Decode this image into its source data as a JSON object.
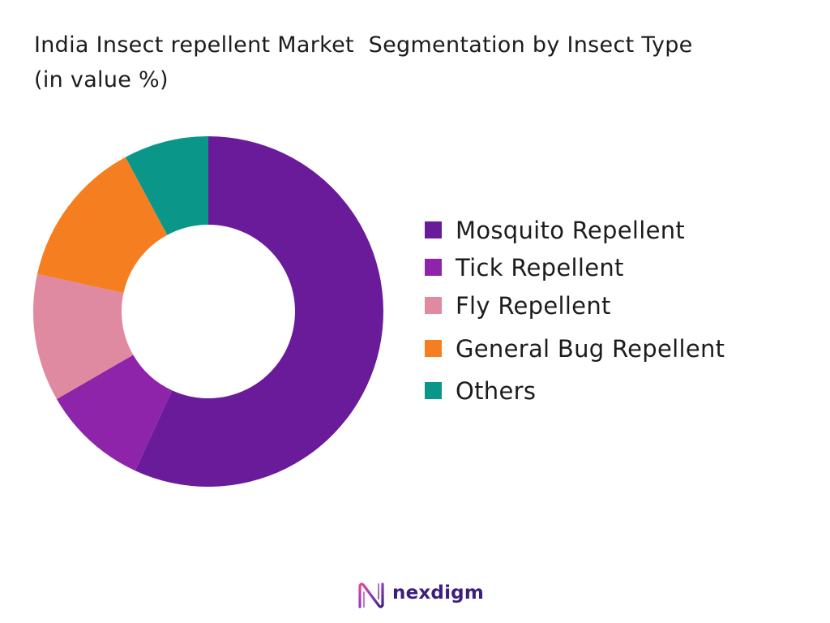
{
  "title": {
    "line1": "India Insect repellent Market  Segmentation by Insect Type",
    "line2": "(in value %)"
  },
  "chart_data": {
    "type": "pie",
    "donut": true,
    "title": "India Insect repellent Market  Segmentation by Insect Type (in value %)",
    "unit": "%",
    "categories": [
      "Mosquito Repellent",
      "Tick Repellent",
      "Fly Repellent",
      "General Bug Repellent",
      "Others"
    ],
    "values": [
      58,
      10,
      12,
      14,
      8
    ],
    "colors": [
      "#6a1b9a",
      "#8e24aa",
      "#df8aa0",
      "#f57f20",
      "#0b968a"
    ],
    "start_angle_deg": 0,
    "direction": "clockwise",
    "legend_position": "right"
  },
  "legend": {
    "items": [
      {
        "label": "Mosquito Repellent",
        "color": "#6a1b9a"
      },
      {
        "label": "Tick Repellent",
        "color": "#8e24aa"
      },
      {
        "label": "Fly Repellent",
        "color": "#df8aa0"
      },
      {
        "label": "General Bug Repellent",
        "color": "#f57f20"
      },
      {
        "label": "Others",
        "color": "#0b968a"
      }
    ]
  },
  "brand": {
    "name": "nexdigm",
    "icon": "nexdigm-logo-icon",
    "color": "#3d1f7a"
  }
}
